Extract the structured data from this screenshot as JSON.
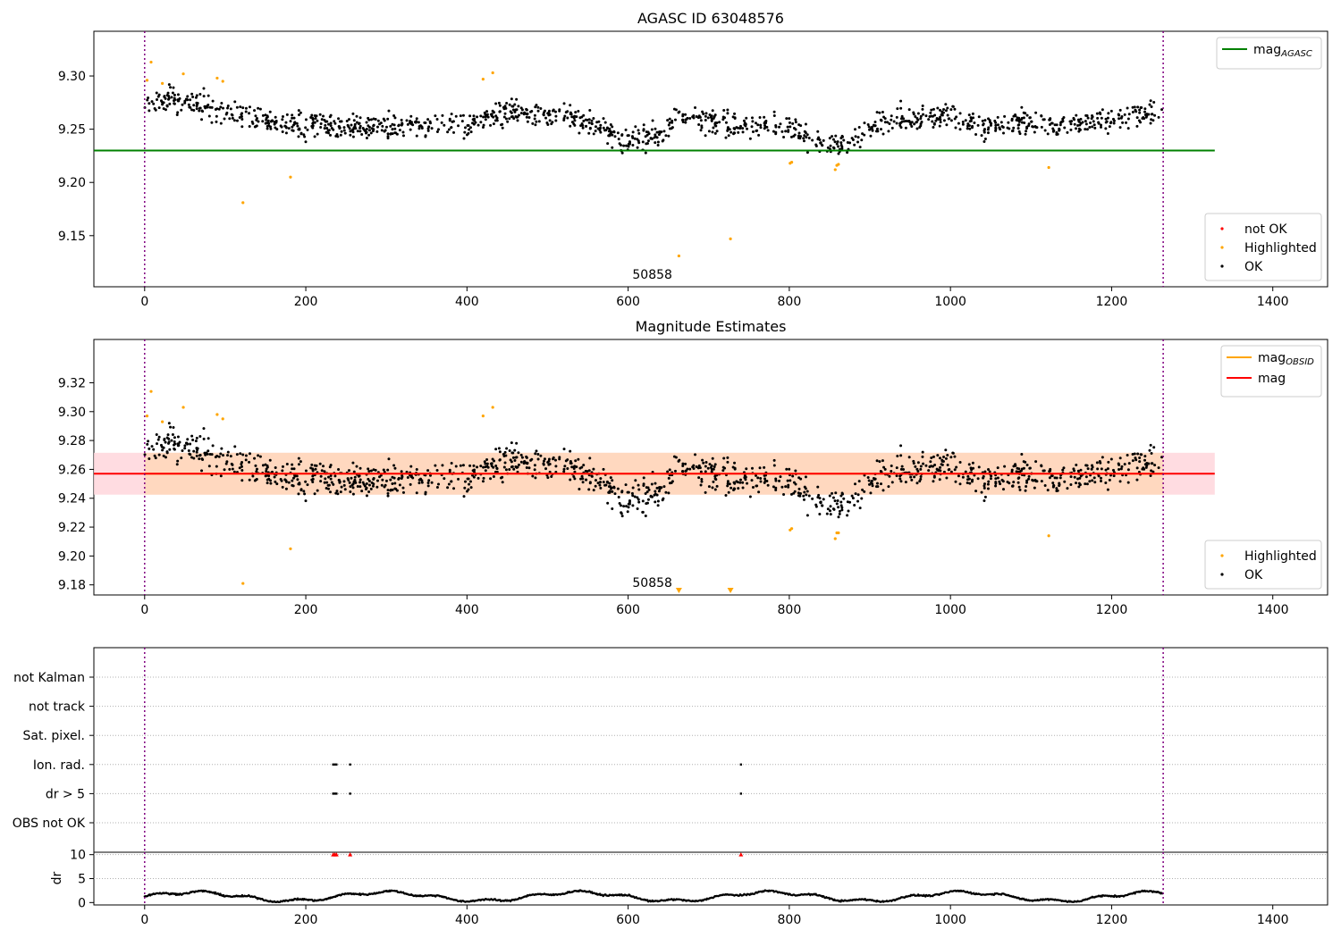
{
  "chart_data": [
    {
      "type": "scatter",
      "title": "AGASC ID 63048576",
      "xlim": [
        -63,
        1468
      ],
      "ylim": [
        9.102,
        9.342
      ],
      "x_ticks": [
        0,
        200,
        400,
        600,
        800,
        1000,
        1200,
        1400
      ],
      "x_tick_labels": [
        "0",
        "200",
        "400",
        "600",
        "800",
        "1000",
        "1200",
        "1400"
      ],
      "y_ticks": [
        9.15,
        9.2,
        9.25,
        9.3
      ],
      "y_tick_labels": [
        "9.15",
        "9.20",
        "9.25",
        "9.30"
      ],
      "vlines": [
        0,
        1264
      ],
      "obsid_label": {
        "text": "50858",
        "x": 630
      },
      "lines": [
        {
          "name": "mag_AGASC",
          "y": 9.23,
          "x": [
            -63,
            1328
          ],
          "color": "#008000"
        }
      ],
      "legend_lines": [
        {
          "name": "mag",
          "sub": "AGASC",
          "color": "#008000"
        }
      ],
      "legend_points": [
        {
          "name": "not OK",
          "color": "#ff0000"
        },
        {
          "name": "Highlighted",
          "color": "#ffa500"
        },
        {
          "name": "OK",
          "color": "#000000"
        }
      ],
      "series": [
        {
          "name": "OK",
          "color": "#000000",
          "generated": "ok_trend",
          "n": 1300,
          "x_range": [
            0,
            1264
          ]
        },
        {
          "name": "Highlighted",
          "color": "#ffa500",
          "x": [
            3,
            8,
            22,
            48,
            90,
            97,
            122,
            181,
            420,
            432,
            663,
            727,
            801,
            803,
            857,
            859,
            861,
            1122
          ],
          "y": [
            9.296,
            9.313,
            9.293,
            9.302,
            9.298,
            9.295,
            9.181,
            9.205,
            9.297,
            9.303,
            9.131,
            9.147,
            9.218,
            9.219,
            9.212,
            9.216,
            9.217,
            9.214
          ]
        }
      ]
    },
    {
      "type": "scatter",
      "title": "Magnitude Estimates",
      "xlim": [
        -63,
        1468
      ],
      "ylim": [
        9.173,
        9.35
      ],
      "x_ticks": [
        0,
        200,
        400,
        600,
        800,
        1000,
        1200,
        1400
      ],
      "x_tick_labels": [
        "0",
        "200",
        "400",
        "600",
        "800",
        "1000",
        "1200",
        "1400"
      ],
      "y_ticks": [
        9.18,
        9.2,
        9.22,
        9.24,
        9.26,
        9.28,
        9.3,
        9.32
      ],
      "y_tick_labels": [
        "9.18",
        "9.20",
        "9.22",
        "9.24",
        "9.26",
        "9.28",
        "9.30",
        "9.32"
      ],
      "vlines": [
        0,
        1264
      ],
      "obsid_label": {
        "text": "50858",
        "x": 630
      },
      "bands": [
        {
          "name": "mag band",
          "y0": 9.2425,
          "y1": 9.2715,
          "x": [
            -63,
            1328
          ],
          "color": "#ffd6dc"
        },
        {
          "name": "mag_OBSID band",
          "y0": 9.2425,
          "y1": 9.2715,
          "x": [
            0,
            1264
          ],
          "color": "#ffd7b9"
        }
      ],
      "lines": [
        {
          "name": "mag_OBSID",
          "y": 9.257,
          "x": [
            0,
            1264
          ],
          "color": "#ffa500"
        },
        {
          "name": "mag",
          "y": 9.257,
          "x": [
            -63,
            1328
          ],
          "color": "#ff0000"
        }
      ],
      "legend_lines": [
        {
          "name": "mag",
          "sub": "OBSID",
          "color": "#ffa500"
        },
        {
          "name": "mag",
          "sub": "",
          "color": "#ff0000"
        }
      ],
      "legend_points": [
        {
          "name": "Highlighted",
          "color": "#ffa500"
        },
        {
          "name": "OK",
          "color": "#000000"
        }
      ],
      "series": [
        {
          "name": "OK",
          "color": "#000000",
          "generated": "ok_trend",
          "n": 1300,
          "x_range": [
            0,
            1264
          ]
        },
        {
          "name": "Highlighted",
          "color": "#ffa500",
          "x": [
            3,
            8,
            22,
            48,
            90,
            97,
            122,
            181,
            420,
            432,
            801,
            803,
            857,
            859,
            861,
            1122
          ],
          "y": [
            9.297,
            9.314,
            9.293,
            9.303,
            9.298,
            9.295,
            9.181,
            9.205,
            9.297,
            9.303,
            9.218,
            9.219,
            9.212,
            9.216,
            9.216,
            9.214
          ]
        }
      ],
      "offscale_markers": [
        {
          "x": 663,
          "color": "#ffa500"
        },
        {
          "x": 727,
          "color": "#ffa500"
        }
      ]
    },
    {
      "type": "scatter",
      "title": "",
      "categories": [
        "not Kalman",
        "not track",
        "Sat. pixel.",
        "Ion. rad.",
        "dr > 5",
        "OBS not OK"
      ],
      "xlim": [
        -63,
        1468
      ],
      "vlines": [
        0,
        1264
      ],
      "flag_points": [
        {
          "category": "Ion. rad.",
          "x": [
            234,
            236,
            238,
            255,
            740
          ]
        },
        {
          "category": "dr > 5",
          "x": [
            234,
            236,
            238,
            255,
            740
          ]
        }
      ]
    },
    {
      "type": "line",
      "title": "",
      "ylabel": "dr",
      "xlim": [
        -63,
        1468
      ],
      "ylim": [
        -0.5,
        10.5
      ],
      "x_ticks": [
        0,
        200,
        400,
        600,
        800,
        1000,
        1200,
        1400
      ],
      "x_tick_labels": [
        "0",
        "200",
        "400",
        "600",
        "800",
        "1000",
        "1200",
        "1400"
      ],
      "y_ticks": [
        0,
        5,
        10
      ],
      "y_tick_labels": [
        "0",
        "5",
        "10"
      ],
      "vlines": [
        0,
        1264
      ],
      "series": [
        {
          "name": "dr",
          "color": "#000000",
          "generated": "dr_wave",
          "n": 1264,
          "x_range": [
            0,
            1264
          ]
        },
        {
          "name": "dr > 5",
          "color": "#ff0000",
          "x": [
            234,
            236,
            238,
            255,
            740
          ],
          "y": [
            10,
            10,
            10,
            10,
            10
          ]
        }
      ]
    }
  ]
}
